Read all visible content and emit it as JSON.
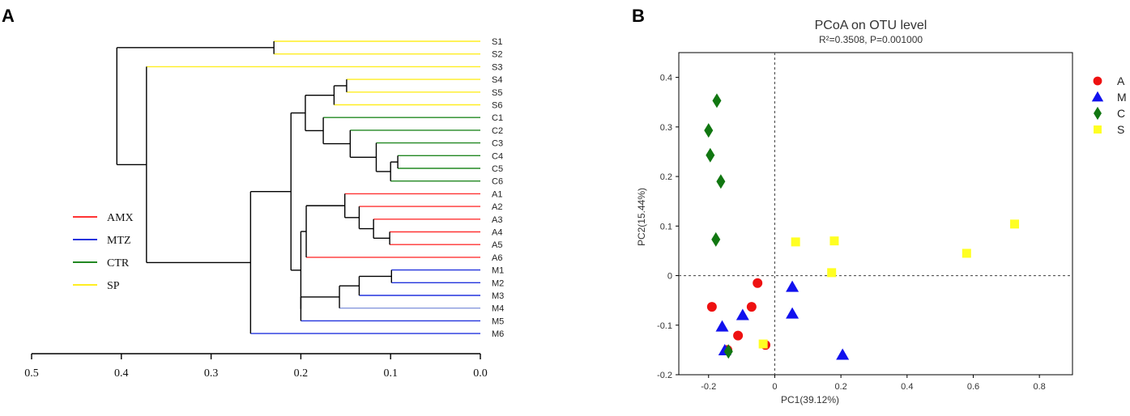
{
  "chart_data": [
    {
      "type": "dendrogram",
      "panel_label": "A",
      "x_axis": {
        "ticks": [
          "0.5",
          "0.4",
          "0.3",
          "0.2",
          "0.1",
          "0.0"
        ],
        "range": [
          0.5,
          0.0
        ]
      },
      "legend": [
        {
          "label": "AMX",
          "color": "#ff3333"
        },
        {
          "label": "MTZ",
          "color": "#2233dd"
        },
        {
          "label": "CTR",
          "color": "#228822"
        },
        {
          "label": "SP",
          "color": "#ffee22"
        }
      ],
      "leaves": [
        {
          "label": "S1",
          "group": "SP",
          "color": "#ffee22"
        },
        {
          "label": "S2",
          "group": "SP",
          "color": "#ffee22"
        },
        {
          "label": "S3",
          "group": "SP",
          "color": "#ffee22"
        },
        {
          "label": "S4",
          "group": "SP",
          "color": "#ffee22"
        },
        {
          "label": "S5",
          "group": "SP",
          "color": "#ffee22"
        },
        {
          "label": "S6",
          "group": "SP",
          "color": "#ffee22"
        },
        {
          "label": "C1",
          "group": "CTR",
          "color": "#228822"
        },
        {
          "label": "C2",
          "group": "CTR",
          "color": "#228822"
        },
        {
          "label": "C3",
          "group": "CTR",
          "color": "#228822"
        },
        {
          "label": "C4",
          "group": "CTR",
          "color": "#228822"
        },
        {
          "label": "C5",
          "group": "CTR",
          "color": "#228822"
        },
        {
          "label": "C6",
          "group": "CTR",
          "color": "#228822"
        },
        {
          "label": "A1",
          "group": "AMX",
          "color": "#ff3333"
        },
        {
          "label": "A2",
          "group": "AMX",
          "color": "#ff3333"
        },
        {
          "label": "A3",
          "group": "AMX",
          "color": "#ff3333"
        },
        {
          "label": "A4",
          "group": "AMX",
          "color": "#ff3333"
        },
        {
          "label": "A5",
          "group": "AMX",
          "color": "#ff3333"
        },
        {
          "label": "A6",
          "group": "AMX",
          "color": "#ff3333"
        },
        {
          "label": "M1",
          "group": "MTZ",
          "color": "#2233dd"
        },
        {
          "label": "M2",
          "group": "MTZ",
          "color": "#2233dd"
        },
        {
          "label": "M3",
          "group": "MTZ",
          "color": "#2233dd"
        },
        {
          "label": "M4",
          "group": "MTZ",
          "color": "#8899dd"
        },
        {
          "label": "M5",
          "group": "MTZ",
          "color": "#2233dd"
        },
        {
          "label": "M6",
          "group": "MTZ",
          "color": "#2233dd"
        }
      ],
      "tree": {
        "h": 0.405,
        "children": [
          {
            "h": 0.23,
            "children": [
              {
                "leaf": 0
              },
              {
                "leaf": 1
              }
            ]
          },
          {
            "h": 0.372,
            "children": [
              {
                "leaf": 2
              },
              {
                "h": 0.256,
                "children": [
                  {
                    "h": 0.211,
                    "children": [
                      {
                        "h": 0.195,
                        "children": [
                          {
                            "h": 0.163,
                            "children": [
                              {
                                "h": 0.149,
                                "children": [
                                  {
                                    "leaf": 3
                                  },
                                  {
                                    "leaf": 4
                                  }
                                ]
                              },
                              {
                                "leaf": 5
                              }
                            ]
                          },
                          {
                            "h": 0.175,
                            "children": [
                              {
                                "leaf": 6
                              },
                              {
                                "h": 0.145,
                                "children": [
                                  {
                                    "leaf": 7
                                  },
                                  {
                                    "h": 0.116,
                                    "children": [
                                      {
                                        "leaf": 8
                                      },
                                      {
                                        "h": 0.1,
                                        "children": [
                                          {
                                            "h": 0.092,
                                            "children": [
                                              {
                                                "leaf": 9
                                              },
                                              {
                                                "leaf": 10
                                              }
                                            ]
                                          },
                                          {
                                            "leaf": 11
                                          }
                                        ]
                                      }
                                    ]
                                  }
                                ]
                              }
                            ]
                          }
                        ]
                      },
                      {
                        "h": 0.2,
                        "children": [
                          {
                            "h": 0.194,
                            "children": [
                              {
                                "h": 0.151,
                                "children": [
                                  {
                                    "leaf": 12
                                  },
                                  {
                                    "h": 0.135,
                                    "children": [
                                      {
                                        "leaf": 13
                                      },
                                      {
                                        "h": 0.119,
                                        "children": [
                                          {
                                            "leaf": 14
                                          },
                                          {
                                            "h": 0.101,
                                            "children": [
                                              {
                                                "leaf": 15
                                              },
                                              {
                                                "leaf": 16
                                              }
                                            ]
                                          }
                                        ]
                                      }
                                    ]
                                  }
                                ]
                              },
                              {
                                "leaf": 17
                              }
                            ]
                          },
                          {
                            "h": 0.2,
                            "children": [
                              {
                                "h": 0.157,
                                "children": [
                                  {
                                    "h": 0.135,
                                    "children": [
                                      {
                                        "h": 0.099,
                                        "children": [
                                          {
                                            "leaf": 18
                                          },
                                          {
                                            "leaf": 19
                                          }
                                        ]
                                      },
                                      {
                                        "leaf": 20
                                      }
                                    ]
                                  },
                                  {
                                    "leaf": 21
                                  }
                                ]
                              },
                              {
                                "leaf": 22
                              }
                            ]
                          }
                        ]
                      }
                    ]
                  },
                  {
                    "leaf": 23
                  }
                ]
              }
            ]
          }
        ]
      }
    },
    {
      "type": "scatter",
      "panel_label": "B",
      "title": "PCoA on OTU level",
      "subtitle": "R²=0.3508, P=0.001000",
      "xlabel": "PC1(39.12%)",
      "ylabel": "PC2(15.44%)",
      "xlim": [
        -0.29,
        0.9
      ],
      "ylim": [
        -0.2,
        0.45
      ],
      "xticks": [
        -0.2,
        0,
        0.2,
        0.4,
        0.6,
        0.8
      ],
      "xtick_labels": [
        "-0.2",
        "0",
        "0.2",
        "0.4",
        "0.6",
        "0.8"
      ],
      "yticks": [
        -0.2,
        -0.1,
        0,
        0.1,
        0.2,
        0.3,
        0.4
      ],
      "ytick_labels": [
        "-0.2",
        "-0.1",
        "0",
        "0.1",
        "0.2",
        "0.3",
        "0.4"
      ],
      "reference_lines": {
        "x": 0,
        "y": 0
      },
      "legend_position": "right",
      "series": [
        {
          "name": "A",
          "marker": "circle",
          "color": "#ee1111",
          "x": [
            -0.052,
            -0.19,
            -0.07,
            -0.111,
            -0.028,
            -0.143
          ],
          "y": [
            -0.015,
            -0.063,
            -0.063,
            -0.121,
            -0.14,
            -0.15
          ]
        },
        {
          "name": "M",
          "marker": "triangle",
          "color": "#1111ee",
          "x": [
            0.053,
            -0.097,
            0.053,
            -0.159,
            -0.151,
            0.205
          ],
          "y": [
            -0.023,
            -0.08,
            -0.077,
            -0.103,
            -0.151,
            -0.16
          ]
        },
        {
          "name": "C",
          "marker": "diamond",
          "color": "#117711",
          "x": [
            -0.175,
            -0.2,
            -0.195,
            -0.163,
            -0.178,
            -0.14
          ],
          "y": [
            0.353,
            0.293,
            0.243,
            0.19,
            0.073,
            -0.153
          ]
        },
        {
          "name": "S",
          "marker": "square",
          "color": "#ffff22",
          "x": [
            0.725,
            0.58,
            0.18,
            0.063,
            0.172,
            -0.035
          ],
          "y": [
            0.104,
            0.045,
            0.07,
            0.068,
            0.006,
            -0.138
          ]
        }
      ]
    }
  ]
}
